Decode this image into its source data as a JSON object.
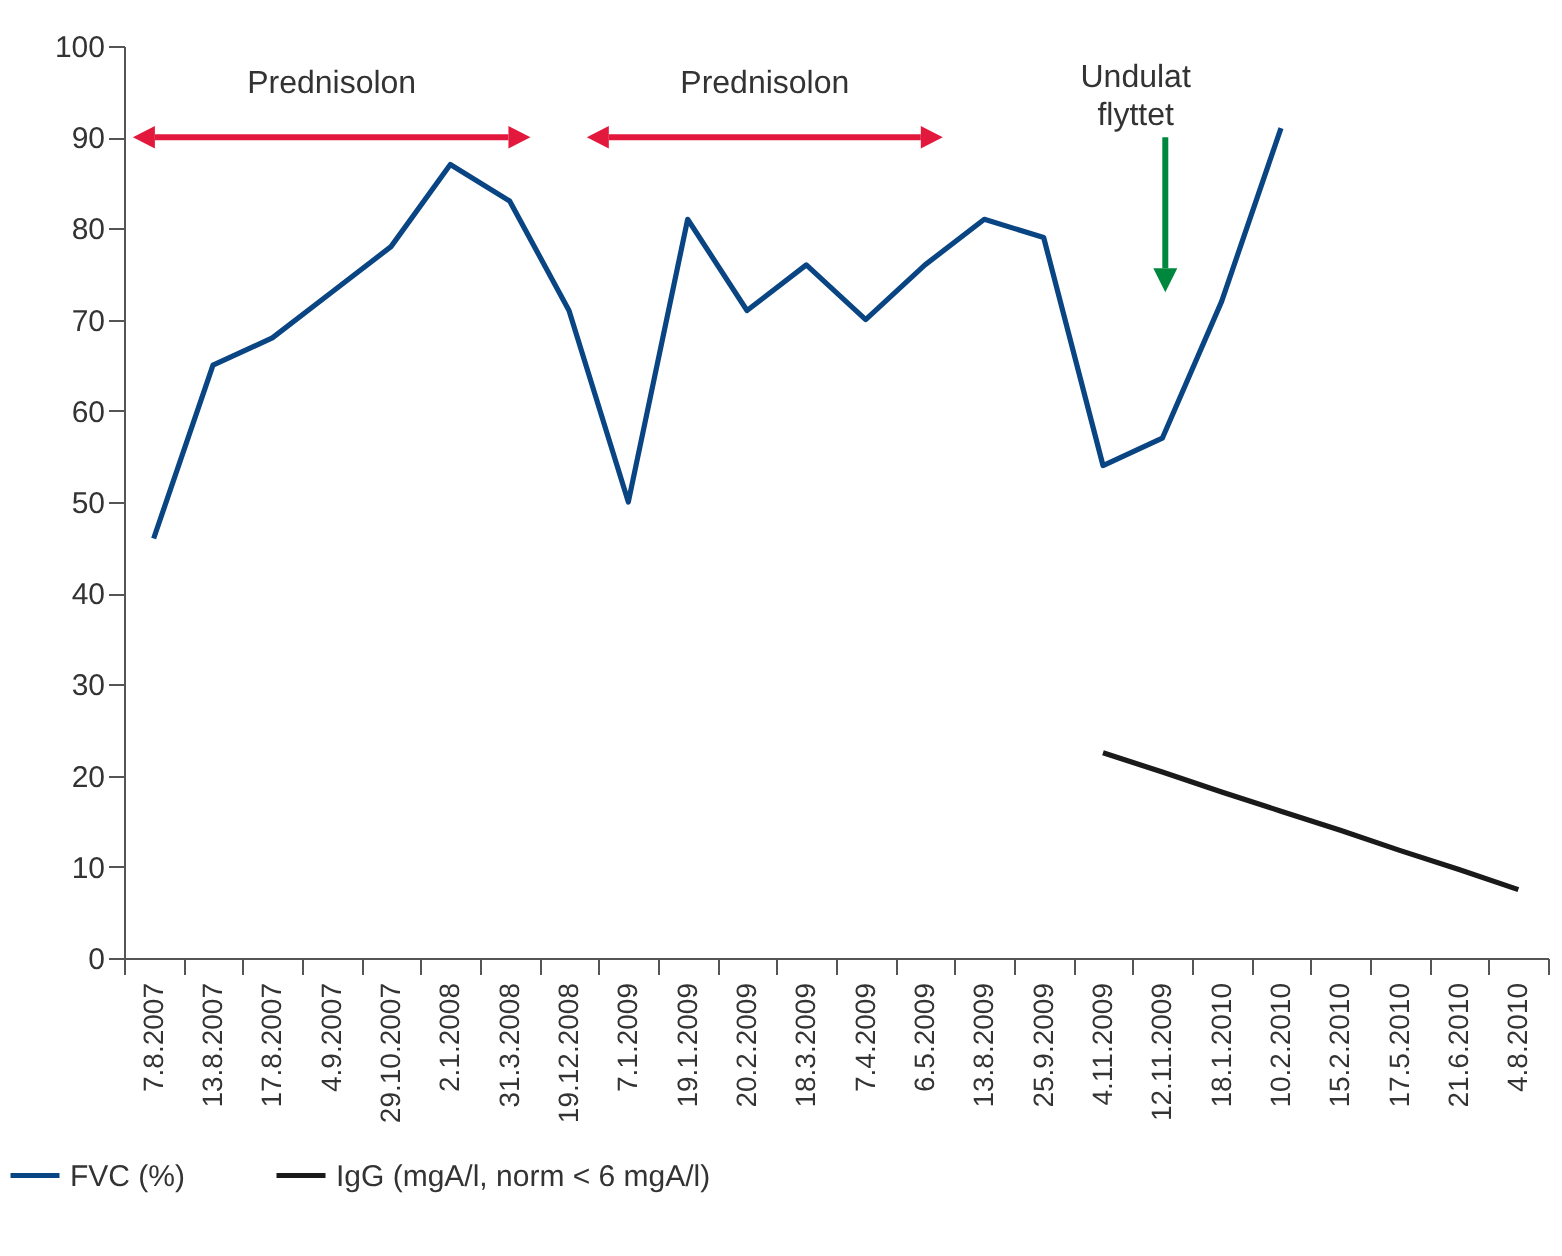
{
  "chart_data": {
    "type": "line",
    "categories": [
      "7.8.2007",
      "13.8.2007",
      "17.8.2007",
      "4.9.2007",
      "29.10.2007",
      "2.1.2008",
      "31.3.2008",
      "19.12.2008",
      "7.1.2009",
      "19.1.2009",
      "20.2.2009",
      "18.3.2009",
      "7.4.2009",
      "6.5.2009",
      "13.8.2009",
      "25.9.2009",
      "4.11.2009",
      "12.11.2009",
      "18.1.2010",
      "10.2.2010",
      "15.2.2010",
      "17.5.2010",
      "21.6.2010",
      "4.8.2010"
    ],
    "series": [
      {
        "name": "FVC (%)",
        "color": "#0a4583",
        "values": [
          46,
          65,
          68,
          73,
          78,
          87,
          83,
          71,
          50,
          81,
          71,
          76,
          70,
          76,
          81,
          79,
          54,
          57,
          72,
          91,
          null,
          null,
          null,
          null
        ]
      },
      {
        "name": "IgG (mgA/l, norm < 6 mgA/l)",
        "color": "#1a1a1a",
        "values": [
          null,
          null,
          null,
          null,
          null,
          null,
          null,
          null,
          null,
          null,
          null,
          null,
          null,
          null,
          null,
          null,
          22.5,
          20.4,
          18.2,
          16.1,
          14,
          11.8,
          9.7,
          7.5
        ]
      }
    ],
    "ylim": [
      0,
      100
    ],
    "yticks": [
      0,
      10,
      20,
      30,
      40,
      50,
      60,
      70,
      80,
      90,
      100
    ],
    "grid": false,
    "legend": "bottom",
    "marker": "none",
    "line_style": "solid",
    "annotations": [
      "Prednisolon",
      "Prednisolon",
      "Undulat\nflyttet"
    ]
  }
}
